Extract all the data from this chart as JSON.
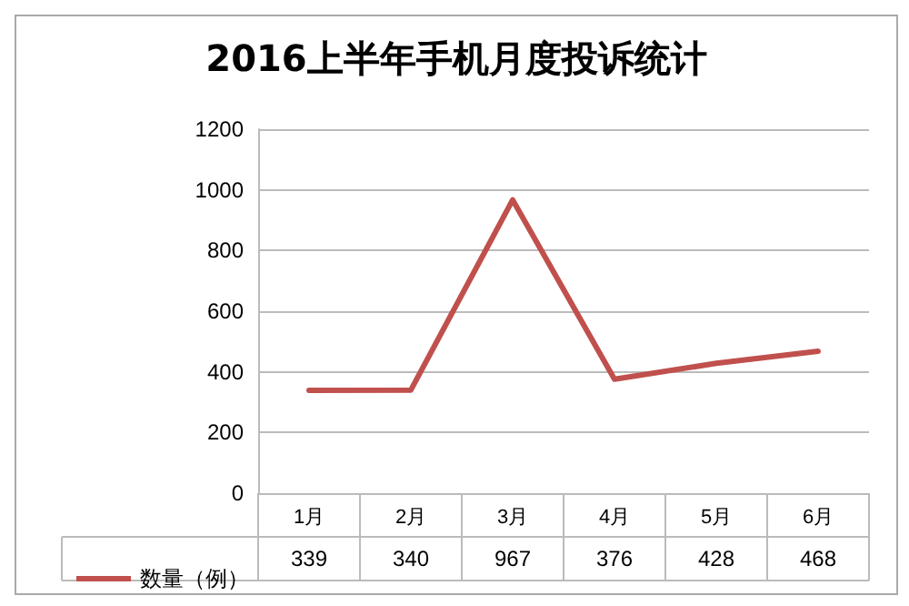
{
  "chart_data": {
    "type": "line",
    "title": "2016上半年手机月度投诉统计",
    "categories": [
      "1月",
      "2月",
      "3月",
      "4月",
      "5月",
      "6月"
    ],
    "series": [
      {
        "name": "数量（例）",
        "color": "#c0504d",
        "values": [
          339,
          340,
          967,
          376,
          428,
          468
        ]
      }
    ],
    "ylim": [
      0,
      1200
    ],
    "yticks": [
      0,
      200,
      400,
      600,
      800,
      1000,
      1200
    ],
    "grid": "y",
    "legend": "bottom",
    "marker": "none",
    "data_labels": true
  }
}
